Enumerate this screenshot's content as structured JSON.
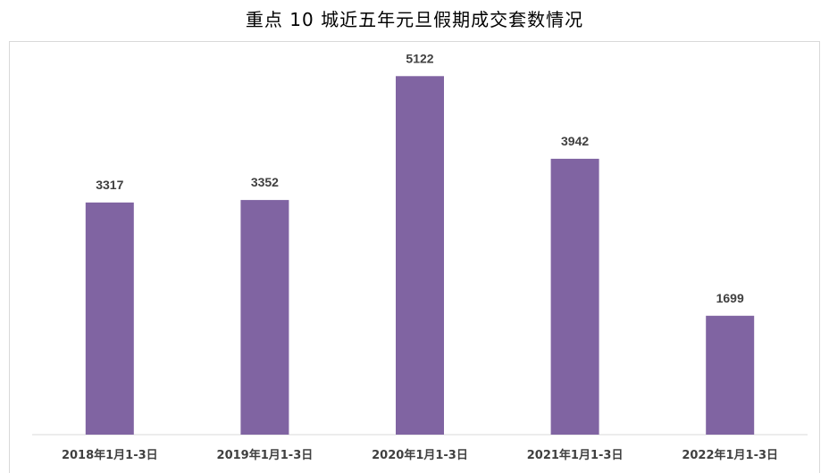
{
  "chart_data": {
    "type": "bar",
    "title": "重点 10 城近五年元旦假期成交套数情况",
    "categories": [
      "2018年1月1-3日",
      "2019年1月1-3日",
      "2020年1月1-3日",
      "2021年1月1-3日",
      "2022年1月1-3日"
    ],
    "values": [
      3317,
      3352,
      5122,
      3942,
      1699
    ],
    "xlabel": "",
    "ylabel": "",
    "ylim": [
      0,
      5700
    ],
    "grid": false,
    "legend": "none",
    "colors": {
      "bar": "#8064a2",
      "axis": "#d9d9d9",
      "label": "#404040"
    }
  }
}
